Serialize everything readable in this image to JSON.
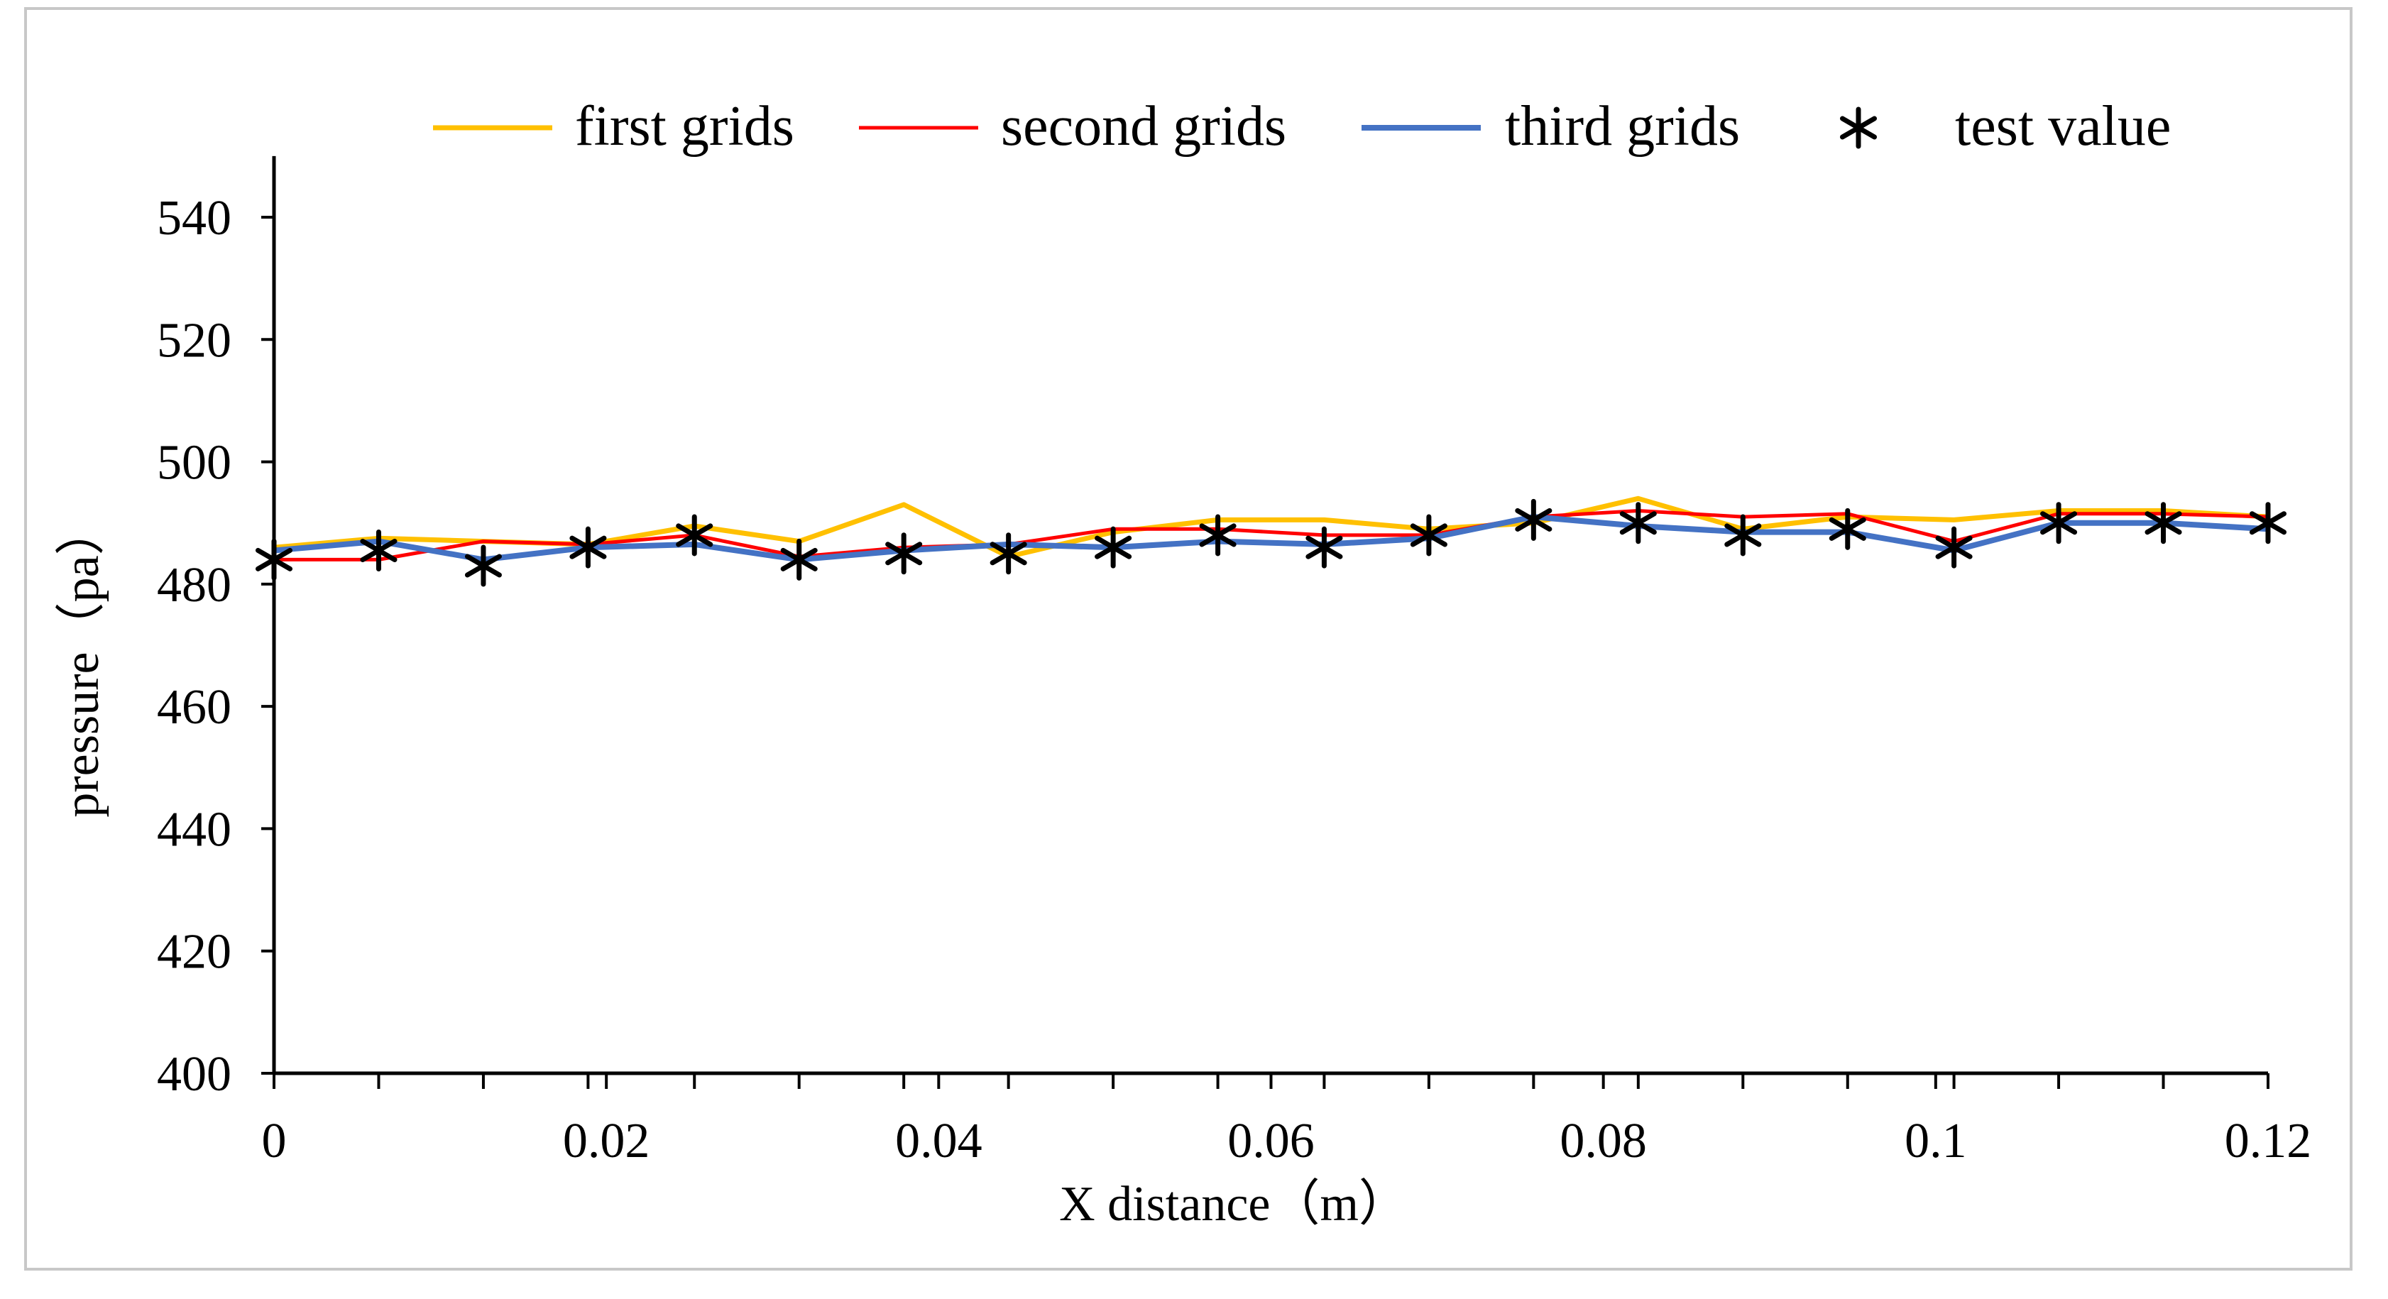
{
  "chart_data": {
    "type": "line",
    "title": "",
    "xlabel": "X distance（m）",
    "ylabel": "pressure（pa）",
    "xlim": [
      0,
      0.12
    ],
    "ylim": [
      400,
      550
    ],
    "x_ticks": [
      0,
      0.02,
      0.04,
      0.06,
      0.08,
      0.1,
      0.12
    ],
    "x_tick_labels": [
      "0",
      "0.02",
      "0.04",
      "0.06",
      "0.08",
      "0.1",
      "0.12"
    ],
    "y_ticks": [
      400,
      420,
      440,
      460,
      480,
      500,
      520,
      540
    ],
    "y_tick_labels": [
      "400",
      "420",
      "440",
      "460",
      "480",
      "500",
      "520",
      "540"
    ],
    "grid": false,
    "legend_position": "top",
    "x": [
      0,
      0.0063,
      0.0126,
      0.0189,
      0.0253,
      0.0316,
      0.0379,
      0.0442,
      0.0505,
      0.0568,
      0.0632,
      0.0695,
      0.0758,
      0.0821,
      0.0884,
      0.0947,
      0.1011,
      0.1074,
      0.1137,
      0.12
    ],
    "series": [
      {
        "name": "first grids",
        "style": "line",
        "color": "#ffc000",
        "values": [
          486,
          487.5,
          487,
          486.5,
          489.5,
          487,
          493,
          484.5,
          488.5,
          490.5,
          490.5,
          489,
          490,
          494,
          489,
          491,
          490.5,
          492,
          492,
          491
        ]
      },
      {
        "name": "second grids",
        "style": "line",
        "color": "#ff0000",
        "values": [
          484,
          484,
          487,
          486.5,
          488,
          484.5,
          486,
          486.5,
          489,
          489,
          488,
          488,
          491,
          492,
          491,
          491.5,
          487,
          491.5,
          491.5,
          491
        ]
      },
      {
        "name": "third grids",
        "style": "line",
        "color": "#4472c4",
        "values": [
          485.5,
          487,
          484,
          486,
          486.5,
          484,
          485.5,
          486.5,
          486,
          487,
          486.5,
          487.5,
          491,
          489.5,
          488.5,
          488.5,
          485.5,
          490,
          490,
          489
        ]
      },
      {
        "name": "test value",
        "style": "marker",
        "color": "#000000",
        "values": [
          484,
          485.5,
          483,
          486,
          488,
          484,
          485,
          485,
          486,
          488,
          486,
          488,
          490.5,
          490,
          488,
          489,
          486,
          490,
          490,
          490
        ]
      }
    ]
  }
}
